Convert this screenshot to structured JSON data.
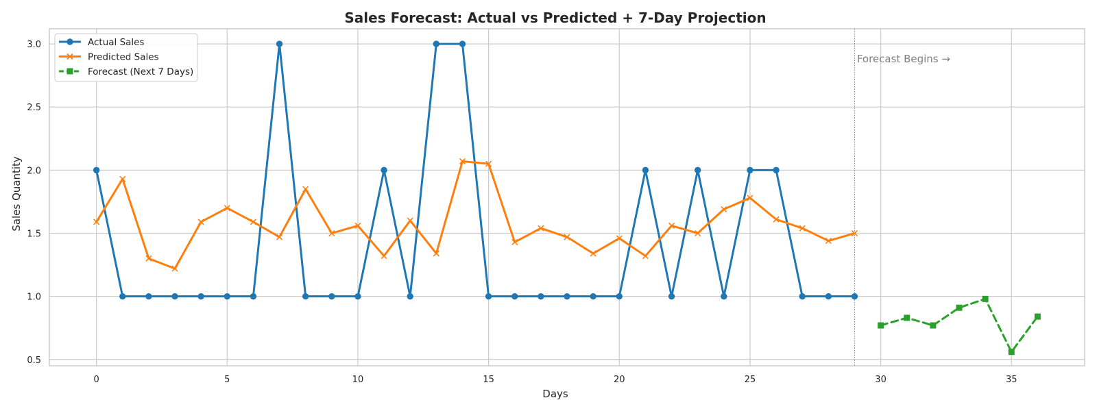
{
  "chart_data": {
    "type": "line",
    "title": "Sales Forecast: Actual vs Predicted + 7-Day Projection",
    "xlabel": "Days",
    "ylabel": "Sales Quantity",
    "xlim": [
      -1.8,
      37.8
    ],
    "ylim": [
      0.45,
      3.12
    ],
    "x_ticks": [
      0,
      5,
      10,
      15,
      20,
      25,
      30,
      35
    ],
    "y_ticks": [
      0.5,
      1.0,
      1.5,
      2.0,
      2.5,
      3.0
    ],
    "grid": true,
    "legend_position": "upper-left",
    "series": [
      {
        "name": "Actual Sales",
        "color": "#1f77b4",
        "marker": "circle",
        "line_style": "solid",
        "x": [
          0,
          1,
          2,
          3,
          4,
          5,
          6,
          7,
          8,
          9,
          10,
          11,
          12,
          13,
          14,
          15,
          16,
          17,
          18,
          19,
          20,
          21,
          22,
          23,
          24,
          25,
          26,
          27,
          28,
          29
        ],
        "values": [
          2,
          1,
          1,
          1,
          1,
          1,
          1,
          3,
          1,
          1,
          1,
          2,
          1,
          3,
          3,
          1,
          1,
          1,
          1,
          1,
          1,
          2,
          1,
          2,
          1,
          2,
          2,
          1,
          1,
          1
        ]
      },
      {
        "name": "Predicted Sales",
        "color": "#ff7f0e",
        "marker": "x",
        "line_style": "solid",
        "x": [
          0,
          1,
          2,
          3,
          4,
          5,
          6,
          7,
          8,
          9,
          10,
          11,
          12,
          13,
          14,
          15,
          16,
          17,
          18,
          19,
          20,
          21,
          22,
          23,
          24,
          25,
          26,
          27,
          28,
          29
        ],
        "values": [
          1.59,
          1.93,
          1.3,
          1.22,
          1.59,
          1.7,
          1.59,
          1.47,
          1.85,
          1.5,
          1.56,
          1.32,
          1.6,
          1.34,
          2.07,
          2.05,
          1.43,
          1.54,
          1.47,
          1.34,
          1.46,
          1.32,
          1.56,
          1.5,
          1.69,
          1.78,
          1.61,
          1.54,
          1.44,
          1.5
        ]
      },
      {
        "name": "Forecast (Next 7 Days)",
        "color": "#2ca02c",
        "marker": "square",
        "line_style": "dashed",
        "x": [
          30,
          31,
          32,
          33,
          34,
          35,
          36
        ],
        "values": [
          0.77,
          0.83,
          0.77,
          0.91,
          0.98,
          0.56,
          0.84
        ]
      }
    ],
    "vertical_line": {
      "x": 29,
      "style": "dotted",
      "color": "#808080"
    },
    "annotation": {
      "text": "Forecast Begins →",
      "x": 30.4,
      "y": 2.88
    }
  }
}
